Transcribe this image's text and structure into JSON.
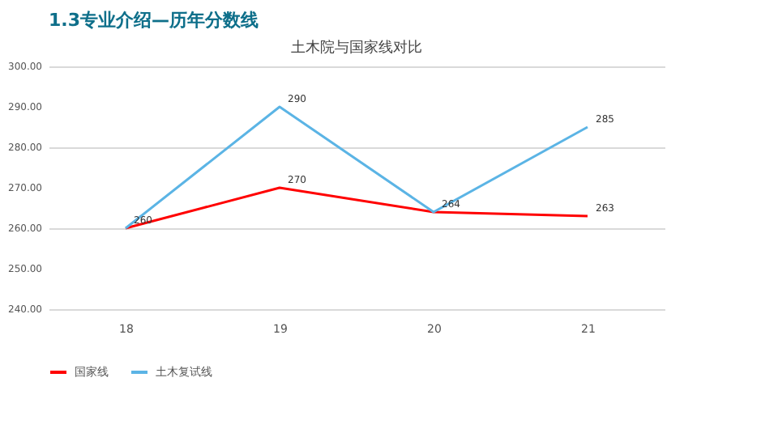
{
  "chart_data": {
    "type": "line",
    "title": "土木院与国家线对比",
    "annotations": [
      "1.3专业介绍—历年分数线"
    ],
    "categories": [
      "18",
      "19",
      "20",
      "21"
    ],
    "series": [
      {
        "name": "国家线",
        "color": "#ff0000",
        "values": [
          260,
          270,
          264,
          263
        ],
        "value_labels": [
          "260",
          "270",
          "264",
          "263"
        ]
      },
      {
        "name": "土木复试线",
        "color": "#5bb4e5",
        "values": [
          260,
          290,
          264,
          285
        ],
        "value_labels": [
          null,
          "290",
          null,
          "285"
        ]
      }
    ],
    "ylim": [
      240,
      300
    ],
    "yticks": [
      {
        "value": 240,
        "label": "240.00"
      },
      {
        "value": 250,
        "label": "250.00"
      },
      {
        "value": 260,
        "label": "260.00"
      },
      {
        "value": 270,
        "label": "270.00"
      },
      {
        "value": 280,
        "label": "280.00"
      },
      {
        "value": 290,
        "label": "290.00"
      },
      {
        "value": 300,
        "label": "300.00"
      }
    ],
    "grid": "y",
    "legend": "bottom",
    "marker": "none",
    "line_style": "solid"
  }
}
